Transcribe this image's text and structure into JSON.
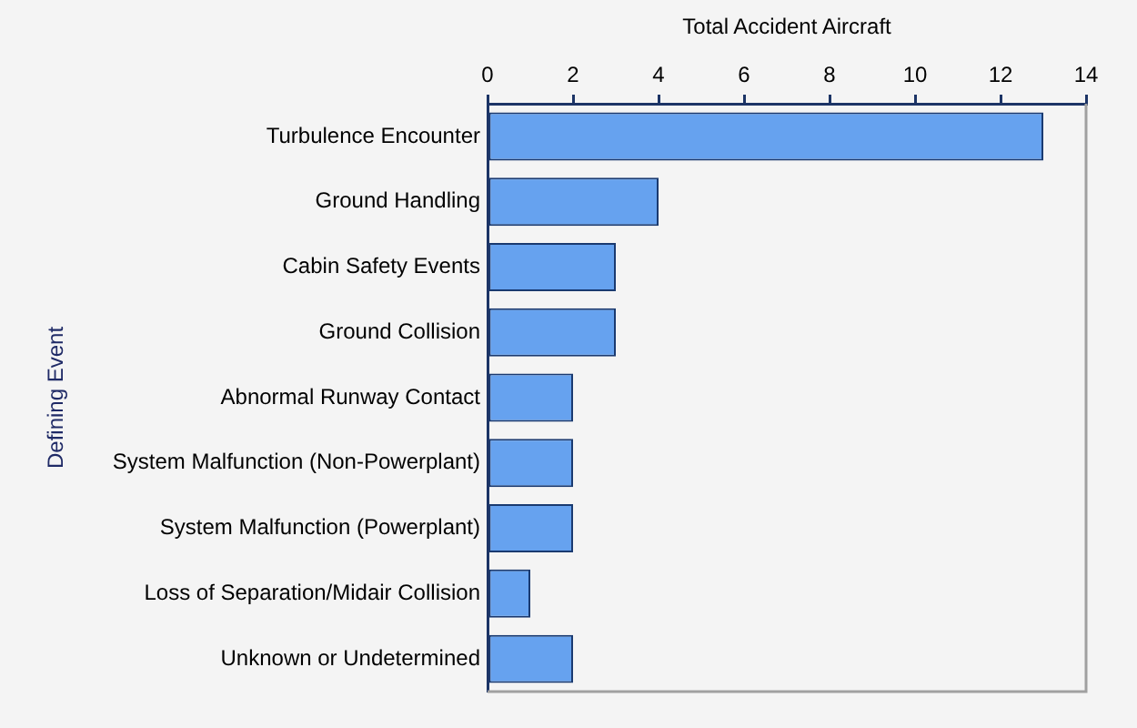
{
  "chart_data": {
    "type": "bar",
    "orientation": "horizontal",
    "xlabel": "Total Accident Aircraft",
    "ylabel": "Defining Event",
    "categories": [
      "Turbulence Encounter",
      "Ground Handling",
      "Cabin Safety Events",
      "Ground Collision",
      "Abnormal Runway Contact",
      "System Malfunction (Non-Powerplant)",
      "System Malfunction (Powerplant)",
      "Loss of Separation/Midair Collision",
      "Unknown or Undetermined"
    ],
    "values": [
      13,
      4,
      3,
      3,
      2,
      2,
      2,
      1,
      2
    ],
    "color": "#66a2ef",
    "xlim": [
      0,
      14
    ],
    "xticks": [
      0,
      2,
      4,
      6,
      8,
      10,
      12,
      14
    ],
    "grid": false,
    "legend": false
  }
}
